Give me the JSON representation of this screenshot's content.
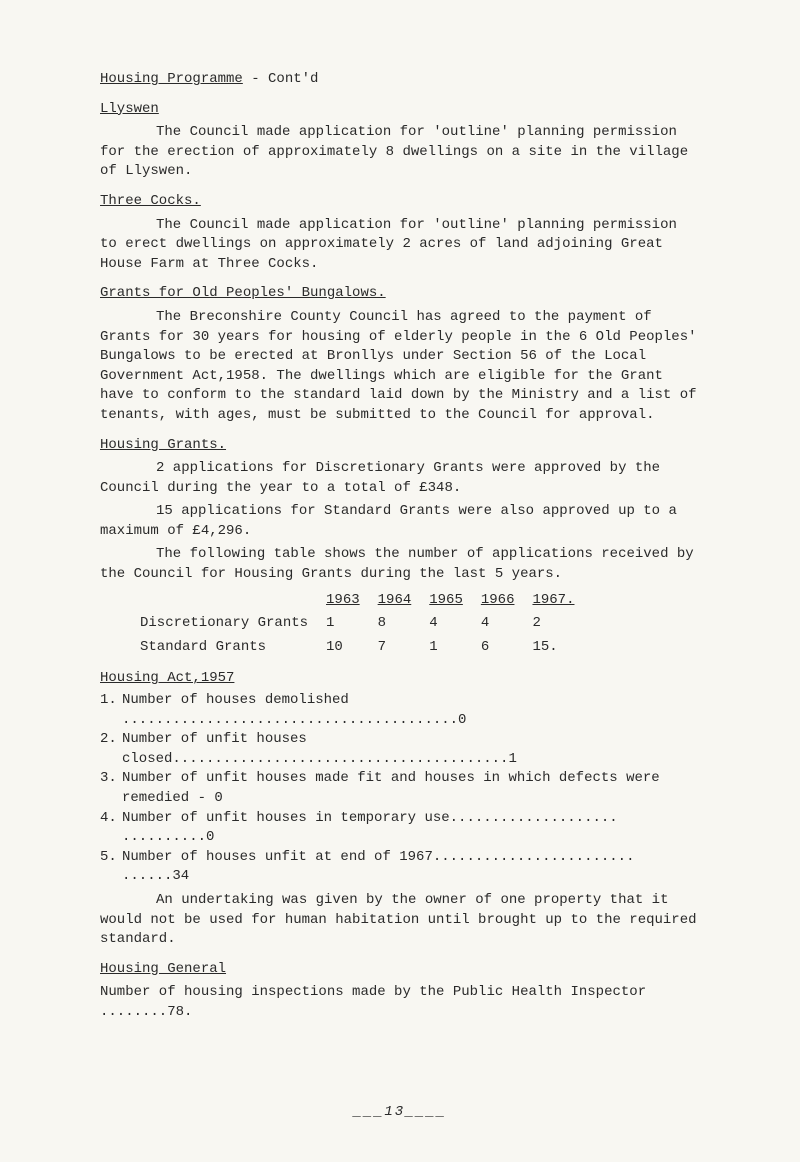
{
  "title": "Housing Programme",
  "title_suffix": " - Cont'd",
  "llyswen": {
    "heading": "Llyswen",
    "para": "The Council made application for 'outline' planning permission for the erection of approximately 8 dwellings on a site in the village of Llyswen."
  },
  "three_cocks": {
    "heading": "Three Cocks.",
    "para": "The Council made application for 'outline' planning permission to erect dwellings on approximately 2 acres of land adjoining Great House Farm at Three Cocks."
  },
  "grants_old": {
    "heading": "Grants for Old Peoples' Bungalows.",
    "para": "The Breconshire County Council has agreed to the payment of Grants for 30 years for housing of elderly people in the 6 Old Peoples' Bungalows to be erected at Bronllys under Section 56 of the Local Government Act,1958. The dwellings which are eligible for the Grant have to conform to the standard laid down by the Ministry and a list of tenants, with ages, must be submitted to the Council for approval."
  },
  "housing_grants": {
    "heading": "Housing Grants.",
    "p1": "2 applications for Discretionary Grants were approved by the Council during the year to a total of £348.",
    "p2": "15 applications for Standard Grants were also approved up to a maximum of £4,296.",
    "p3": "The following table shows the number of applications received by the Council for Housing Grants during the last 5 years."
  },
  "apps_table": {
    "years": [
      "1963",
      "1964",
      "1965",
      "1966",
      "1967."
    ],
    "rows": [
      {
        "label": "Discretionary Grants",
        "vals": [
          "1",
          "8",
          "4",
          "4",
          "2"
        ]
      },
      {
        "label": "Standard Grants",
        "vals": [
          "10",
          "7",
          "1",
          "6",
          "15."
        ]
      }
    ]
  },
  "housing_act": {
    "heading": "Housing Act,1957",
    "items": [
      "Number of houses demolished ........................................0",
      "Number of unfit houses closed........................................1",
      "Number of unfit houses made fit and houses in which defects were remedied - 0",
      "Number of unfit houses in temporary use.................... ..........0",
      "Number of houses unfit at end of 1967........................ ......34"
    ],
    "para": "An undertaking was given by the owner of one property that it would not be used for human habitation until brought up to the required standard."
  },
  "housing_general": {
    "heading": "Housing General",
    "para": "Number of housing inspections made by the Public Health Inspector ........78."
  },
  "page_num": "___13____"
}
